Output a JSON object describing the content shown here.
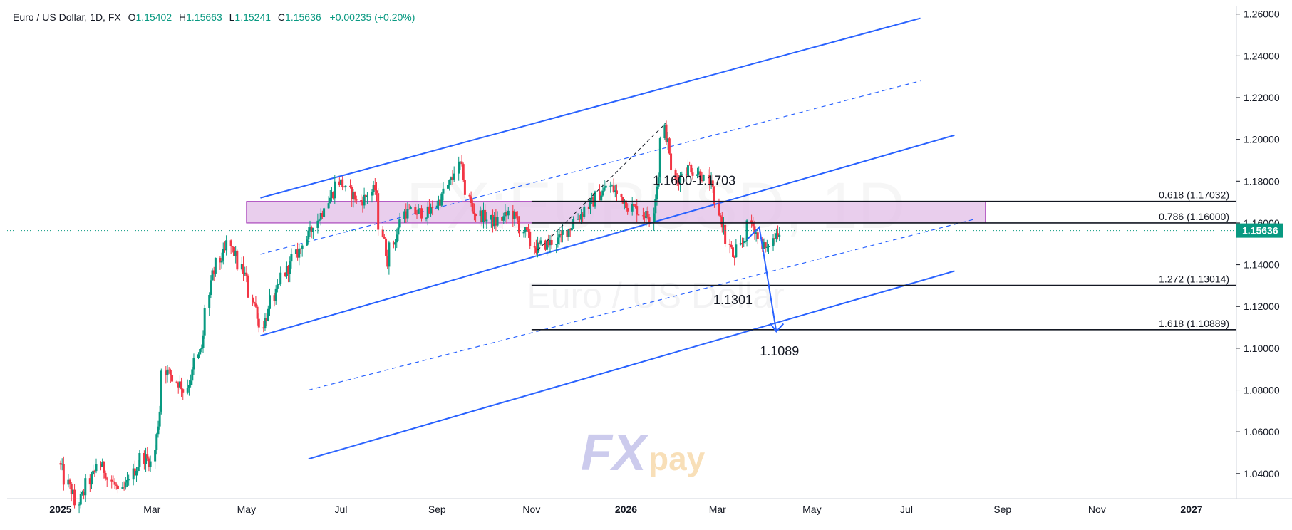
{
  "header": {
    "symbol": "Euro / US Dollar, 1D, FX",
    "open_label": "O",
    "open": "1.15402",
    "high_label": "H",
    "high": "1.15663",
    "low_label": "L",
    "low": "1.15241",
    "close_label": "C",
    "close": "1.15636",
    "change": "+0.00235 (+0.20%)"
  },
  "watermark": {
    "main": "FX:EURUSD, 1D",
    "sub": "Euro / US Dollar",
    "logo_fx": "FX",
    "logo_pay": "pay"
  },
  "colors": {
    "up": "#089981",
    "down": "#f23645",
    "channel": "#2962ff",
    "zone": "#e1bee7",
    "zone_border": "#9c27b0",
    "price_tag": "#089981"
  },
  "chart_data": {
    "type": "candlestick",
    "instrument": "Euro / US Dollar",
    "timeframe": "1D",
    "last_price": "1.15636",
    "ylim": [
      1.028,
      1.264
    ],
    "y_ticks": [
      "1.04000",
      "1.06000",
      "1.08000",
      "1.10000",
      "1.12000",
      "1.14000",
      "1.16000",
      "1.18000",
      "1.20000",
      "1.22000",
      "1.24000",
      "1.26000"
    ],
    "x_ticks": [
      "2025",
      "Mar",
      "May",
      "Jul",
      "Sep",
      "Nov",
      "2026",
      "Mar",
      "May",
      "Jul",
      "Sep",
      "Nov",
      "2027"
    ],
    "price_path": [
      [
        "2025-01-01",
        1.045
      ],
      [
        "2025-01-13",
        1.025
      ],
      [
        "2025-01-27",
        1.045
      ],
      [
        "2025-02-10",
        1.03
      ],
      [
        "2025-02-24",
        1.048
      ],
      [
        "2025-03-03",
        1.045
      ],
      [
        "2025-03-10",
        1.09
      ],
      [
        "2025-03-24",
        1.08
      ],
      [
        "2025-04-03",
        1.1
      ],
      [
        "2025-04-10",
        1.135
      ],
      [
        "2025-04-21",
        1.15
      ],
      [
        "2025-05-01",
        1.135
      ],
      [
        "2025-05-12",
        1.11
      ],
      [
        "2025-05-26",
        1.135
      ],
      [
        "2025-06-12",
        1.155
      ],
      [
        "2025-07-01",
        1.18
      ],
      [
        "2025-07-14",
        1.17
      ],
      [
        "2025-07-24",
        1.176
      ],
      [
        "2025-08-01",
        1.142
      ],
      [
        "2025-08-12",
        1.165
      ],
      [
        "2025-08-28",
        1.165
      ],
      [
        "2025-09-05",
        1.172
      ],
      [
        "2025-09-17",
        1.188
      ],
      [
        "2025-09-25",
        1.166
      ],
      [
        "2025-10-10",
        1.16
      ],
      [
        "2025-10-20",
        1.165
      ],
      [
        "2025-11-05",
        1.148
      ],
      [
        "2025-11-20",
        1.152
      ],
      [
        "2025-12-05",
        1.165
      ],
      [
        "2025-12-22",
        1.178
      ],
      [
        "2026-01-05",
        1.168
      ],
      [
        "2026-01-19",
        1.162
      ],
      [
        "2026-01-27",
        1.205
      ],
      [
        "2026-02-03",
        1.18
      ],
      [
        "2026-02-12",
        1.187
      ],
      [
        "2026-02-25",
        1.18
      ],
      [
        "2026-03-05",
        1.16
      ],
      [
        "2026-03-13",
        1.142
      ],
      [
        "2026-03-24",
        1.16
      ],
      [
        "2026-04-03",
        1.146
      ],
      [
        "2026-04-10",
        1.156
      ]
    ],
    "zones": [
      {
        "label": "1.1600-1.1703",
        "low": 1.16,
        "high": 1.1703
      }
    ],
    "horizontal_levels": [
      {
        "ratio_label": "0.618 (1.17032)",
        "value": 1.17032
      },
      {
        "ratio_label": "0.786 (1.16000)",
        "value": 1.16
      },
      {
        "ratio_label": "1.272 (1.13014)",
        "value": 1.13014
      },
      {
        "ratio_label": "1.618 (1.10889)",
        "value": 1.10889
      }
    ],
    "annotations": [
      "1.1600-1.1703",
      "1.1301",
      "1.1089"
    ],
    "channel_lines": [
      {
        "style": "solid",
        "from": [
          "2025-05-10",
          1.172
        ],
        "to": [
          "2026-07-10",
          1.258
        ]
      },
      {
        "style": "dashed",
        "from": [
          "2025-05-10",
          1.145
        ],
        "to": [
          "2026-07-10",
          1.228
        ]
      },
      {
        "style": "solid",
        "from": [
          "2025-05-10",
          1.106
        ],
        "to": [
          "2026-08-01",
          1.202
        ]
      },
      {
        "style": "dashed",
        "from": [
          "2025-06-10",
          1.08
        ],
        "to": [
          "2026-08-15",
          1.162
        ]
      },
      {
        "style": "solid",
        "from": [
          "2025-06-10",
          1.047
        ],
        "to": [
          "2026-08-01",
          1.137
        ]
      }
    ],
    "projection": {
      "from": [
        "2026-03-28",
        1.158
      ],
      "to": [
        "2026-04-08",
        1.108
      ]
    }
  }
}
